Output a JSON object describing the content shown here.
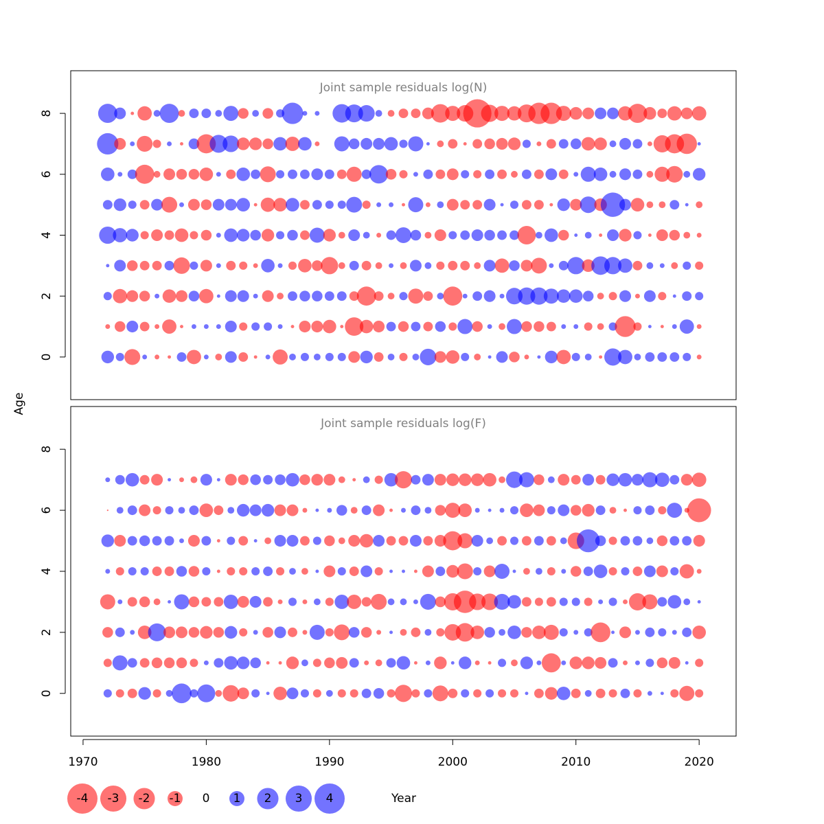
{
  "ylabel": "Age",
  "legend": {
    "values": [
      -4,
      -3,
      -2,
      -1,
      0,
      1,
      2,
      3,
      4
    ]
  },
  "colors": {
    "negative": "#ff0000",
    "positive": "#0000ff"
  },
  "chart_data": [
    {
      "type": "bubble",
      "title": "Joint sample residuals log(N)",
      "x": [
        1972,
        1973,
        1974,
        1975,
        1976,
        1977,
        1978,
        1979,
        1980,
        1981,
        1982,
        1983,
        1984,
        1985,
        1986,
        1987,
        1988,
        1989,
        1990,
        1991,
        1992,
        1993,
        1994,
        1995,
        1996,
        1997,
        1998,
        1999,
        2000,
        2001,
        2002,
        2003,
        2004,
        2005,
        2006,
        2007,
        2008,
        2009,
        2010,
        2011,
        2012,
        2013,
        2014,
        2015,
        2016,
        2017,
        2018,
        2019,
        2020
      ],
      "ages": [
        0,
        1,
        2,
        3,
        4,
        5,
        6,
        7,
        8
      ],
      "xlim": [
        1969,
        2023
      ],
      "ylim": [
        -1.4,
        9.4
      ],
      "yticks": [
        0,
        2,
        4,
        6,
        8
      ],
      "values": [
        [
          0.7,
          0.3,
          -1.1,
          0.1,
          -0.1,
          -0.05,
          0.4,
          -0.9,
          0.1,
          -0.2,
          0.6,
          -0.4,
          -0.05,
          0.1,
          -1.0,
          0.2,
          0.3,
          0.2,
          0.3,
          0.3,
          -0.6,
          0.7,
          -0.4,
          0.2,
          -0.3,
          0.2,
          1.2,
          -0.6,
          -0.8,
          0.3,
          -0.2,
          0.05,
          0.6,
          -0.5,
          -0.1,
          0.05,
          0.7,
          -0.9,
          0.3,
          0.2,
          -0.05,
          1.3,
          0.9,
          0.2,
          0.4,
          0.4,
          0.4,
          0.3,
          -0.1
        ],
        [
          -0.1,
          -0.5,
          0.6,
          -0.4,
          -0.1,
          -0.9,
          -0.05,
          0.1,
          0.1,
          0.1,
          0.6,
          -0.3,
          0.3,
          0.3,
          0.1,
          -0.05,
          -0.6,
          -0.6,
          -0.8,
          -0.05,
          -1.5,
          -0.8,
          -0.6,
          0.4,
          -0.5,
          0.4,
          -0.4,
          0.5,
          -0.3,
          1.0,
          -0.5,
          0.1,
          -0.2,
          1.0,
          -0.5,
          -0.5,
          -0.4,
          0.1,
          0.1,
          -0.3,
          -0.2,
          0.3,
          -1.9,
          -0.3,
          0.05,
          -0.05,
          0.1,
          0.9,
          -0.1
        ],
        [
          0.3,
          -0.9,
          -0.6,
          -0.5,
          0.1,
          -0.8,
          -0.6,
          0.5,
          -0.9,
          0.05,
          0.6,
          0.6,
          0.1,
          -0.6,
          -0.2,
          0.4,
          0.5,
          0.5,
          0.4,
          0.4,
          -0.4,
          -1.6,
          -0.4,
          -0.2,
          0.3,
          -1.0,
          -0.4,
          0.2,
          -1.6,
          0.1,
          0.4,
          0.6,
          0.1,
          1.2,
          1.3,
          1.3,
          1.0,
          0.8,
          0.8,
          0.5,
          -0.2,
          -0.3,
          0.6,
          -0.1,
          0.6,
          -0.3,
          0.05,
          0.4,
          0.3
        ],
        [
          0.05,
          0.6,
          -0.5,
          -0.4,
          -0.4,
          0.4,
          -1.2,
          0.3,
          -0.6,
          0.1,
          -0.4,
          -0.3,
          -0.1,
          0.8,
          0.1,
          -0.3,
          -0.8,
          -0.5,
          -1.3,
          -0.2,
          0.4,
          -0.4,
          -0.2,
          0.1,
          -0.2,
          0.6,
          0.2,
          -0.3,
          -0.4,
          -0.4,
          -0.2,
          0.6,
          -0.9,
          0.5,
          -0.6,
          -1.1,
          0.1,
          0.4,
          1.3,
          -0.7,
          1.5,
          1.3,
          0.9,
          -0.4,
          0.2,
          0.1,
          -0.2,
          0.3,
          -0.3
        ],
        [
          1.3,
          0.9,
          0.7,
          -0.3,
          -0.6,
          -0.4,
          -0.8,
          -0.3,
          -0.5,
          0.1,
          0.8,
          0.7,
          0.5,
          -0.7,
          0.3,
          0.5,
          -0.4,
          1.0,
          -0.7,
          -0.2,
          0.6,
          0.2,
          -0.1,
          0.4,
          1.1,
          0.5,
          -0.2,
          -0.6,
          0.3,
          0.4,
          0.6,
          0.5,
          0.4,
          0.4,
          -1.5,
          0.2,
          0.8,
          -0.5,
          0.05,
          0.2,
          -0.05,
          0.6,
          -0.7,
          0.3,
          -0.05,
          -0.6,
          -0.5,
          -0.2,
          -0.1
        ],
        [
          0.4,
          0.7,
          0.3,
          -0.4,
          0.6,
          -1.1,
          0.1,
          -0.6,
          -0.5,
          0.6,
          0.6,
          0.8,
          -0.05,
          -0.9,
          -0.8,
          0.8,
          -0.4,
          0.4,
          0.3,
          0.3,
          1.1,
          -0.3,
          0.1,
          0.1,
          -0.05,
          1.0,
          -0.1,
          0.2,
          -0.6,
          -0.4,
          -0.4,
          0.6,
          0.05,
          0.3,
          -0.4,
          -0.4,
          -0.05,
          0.7,
          -0.6,
          1.2,
          -0.7,
          2.6,
          0.6,
          -0.8,
          -0.2,
          -0.2,
          0.4,
          0.05,
          -0.2
        ],
        [
          0.8,
          0.1,
          0.4,
          -1.6,
          -0.2,
          -0.6,
          -0.5,
          -0.5,
          -0.8,
          0.1,
          -0.4,
          0.8,
          0.4,
          -1.1,
          0.3,
          0.4,
          0.4,
          0.6,
          0.4,
          -0.4,
          -1.0,
          0.4,
          1.5,
          -0.5,
          -0.3,
          0.1,
          0.4,
          -0.4,
          -0.6,
          0.3,
          -0.3,
          0.4,
          -0.4,
          -0.2,
          0.4,
          -0.4,
          0.6,
          -0.4,
          0.1,
          1.0,
          0.8,
          0.2,
          0.6,
          0.4,
          -0.2,
          -1.0,
          -1.2,
          0.2,
          0.7
        ],
        [
          2.0,
          -0.6,
          0.1,
          -1.1,
          -0.3,
          0.1,
          -0.05,
          0.5,
          -1.6,
          1.4,
          1.2,
          -0.7,
          -0.7,
          -0.5,
          0.8,
          -0.9,
          0.8,
          -0.1,
          0,
          1.0,
          0.5,
          0.6,
          0.6,
          0.8,
          0.3,
          1.0,
          0.05,
          -0.2,
          -0.4,
          -0.05,
          -0.4,
          -0.5,
          -0.6,
          -0.7,
          0.3,
          -0.1,
          -0.4,
          0.4,
          0.5,
          -0.8,
          -0.7,
          0.2,
          0.6,
          0.4,
          -0.1,
          -1.3,
          -1.6,
          -1.8,
          0.05
        ],
        [
          1.6,
          0.6,
          -0.05,
          -0.9,
          0.2,
          1.6,
          -0.2,
          0.4,
          0.4,
          0.2,
          1.0,
          -0.5,
          0.2,
          -0.5,
          0.3,
          2.0,
          0.1,
          0.1,
          0,
          1.5,
          1.4,
          1.2,
          0.2,
          -0.2,
          -0.4,
          -0.4,
          -0.6,
          -1.5,
          -1.0,
          -1.2,
          -3.5,
          -1.3,
          -1.0,
          -0.9,
          -1.4,
          -2.0,
          -2.0,
          -1.0,
          -0.7,
          -0.6,
          0.6,
          0.6,
          -0.9,
          -1.6,
          -0.7,
          -0.4,
          -0.9,
          -0.6,
          -0.9
        ]
      ]
    },
    {
      "type": "bubble",
      "title": "Joint sample residuals log(F)",
      "xlabel": "Year",
      "x": [
        1972,
        1973,
        1974,
        1975,
        1976,
        1977,
        1978,
        1979,
        1980,
        1981,
        1982,
        1983,
        1984,
        1985,
        1986,
        1987,
        1988,
        1989,
        1990,
        1991,
        1992,
        1993,
        1994,
        1995,
        1996,
        1997,
        1998,
        1999,
        2000,
        2001,
        2002,
        2003,
        2004,
        2005,
        2006,
        2007,
        2008,
        2009,
        2010,
        2011,
        2012,
        2013,
        2014,
        2015,
        2016,
        2017,
        2018,
        2019,
        2020
      ],
      "ages": [
        0,
        1,
        2,
        3,
        4,
        5,
        6,
        7
      ],
      "xlim": [
        1969,
        2023
      ],
      "xticks": [
        1970,
        1980,
        1990,
        2000,
        2010,
        2020
      ],
      "ylim": [
        -1.4,
        9.4
      ],
      "yticks": [
        0,
        2,
        4,
        6,
        8
      ],
      "values": [
        [
          0.3,
          -0.3,
          -0.4,
          0.7,
          -0.3,
          0.2,
          1.7,
          0.3,
          1.4,
          -0.2,
          -1.2,
          -0.6,
          0.3,
          0.05,
          -0.8,
          0.6,
          0.3,
          -0.3,
          0.2,
          -0.3,
          -0.3,
          0.4,
          0.5,
          -0.3,
          -1.3,
          -0.3,
          0.3,
          -1.1,
          -0.4,
          0.3,
          -0.3,
          0.3,
          -0.3,
          -0.3,
          0.05,
          -0.4,
          -0.7,
          0.8,
          -0.4,
          0.2,
          -0.4,
          -0.3,
          0.4,
          -0.3,
          0.1,
          0.05,
          -0.3,
          -1.0,
          -0.3
        ],
        [
          -0.3,
          1.0,
          0.4,
          -0.4,
          -0.5,
          -0.5,
          -0.5,
          -0.3,
          0.1,
          0.4,
          0.8,
          0.7,
          0.5,
          -0.05,
          -0.05,
          -0.7,
          0.2,
          -0.3,
          -0.5,
          -0.6,
          0.4,
          -0.1,
          -0.2,
          0.4,
          0.8,
          -0.05,
          0.1,
          -0.7,
          0.05,
          0.7,
          -0.1,
          -0.05,
          0.3,
          -0.2,
          0.7,
          0.1,
          -1.6,
          0.1,
          -0.7,
          -0.7,
          -0.6,
          0.4,
          -0.1,
          0.1,
          0.3,
          -0.5,
          -0.6,
          0.05,
          -0.3
        ],
        [
          -0.5,
          0.4,
          0.1,
          -0.8,
          1.4,
          -0.6,
          -0.6,
          -0.5,
          -0.7,
          -0.5,
          0.7,
          -0.3,
          0.1,
          -0.5,
          0.6,
          -0.4,
          -0.1,
          1.0,
          -0.3,
          -1.1,
          0.5,
          -0.5,
          -0.1,
          0.05,
          -0.2,
          -0.4,
          0.2,
          -0.3,
          -1.2,
          -1.5,
          -0.8,
          0.5,
          0.2,
          0.8,
          -0.5,
          -0.8,
          -1.0,
          0.3,
          0.1,
          0.3,
          -1.7,
          0.05,
          -0.6,
          0.1,
          0.4,
          0.3,
          0.1,
          0.4,
          -0.8
        ],
        [
          -1.0,
          0.1,
          -0.4,
          -0.5,
          -0.2,
          0.05,
          1.0,
          -0.5,
          -0.4,
          -0.4,
          0.9,
          -0.6,
          0.6,
          -0.4,
          -0.1,
          0.3,
          -0.1,
          0.2,
          -0.3,
          0.9,
          -0.9,
          -0.4,
          -1.1,
          0.2,
          0.2,
          0.1,
          1.1,
          -0.5,
          -1.3,
          -2.2,
          -1.2,
          -1.2,
          1.1,
          0.8,
          -0.4,
          -0.3,
          -0.4,
          0.3,
          0.3,
          -0.3,
          0.1,
          0.3,
          -0.1,
          -1.3,
          -1.0,
          0.4,
          0.8,
          0.2,
          0.05
        ],
        [
          0.1,
          -0.3,
          0.3,
          0.3,
          -0.4,
          -0.4,
          0.5,
          -0.5,
          0.3,
          -0.05,
          -0.3,
          -0.3,
          0.3,
          0.4,
          -0.3,
          0.2,
          -0.2,
          0.05,
          -0.6,
          0.3,
          -0.4,
          0.6,
          -0.3,
          0.05,
          0.05,
          -0.05,
          -0.6,
          0.4,
          -0.7,
          -1.1,
          0.3,
          -0.6,
          1.0,
          0.05,
          -0.2,
          0.2,
          -0.3,
          0.1,
          -0.5,
          0.4,
          0.8,
          -0.3,
          0.3,
          -0.4,
          0.6,
          -0.6,
          0.3,
          -0.9,
          -0.1
        ],
        [
          0.7,
          -0.6,
          0.4,
          0.5,
          0.4,
          0.4,
          0.1,
          -0.6,
          0.4,
          -0.05,
          0.3,
          -0.4,
          0.05,
          -0.2,
          0.6,
          0.6,
          -0.4,
          0.3,
          -0.5,
          -0.2,
          -0.6,
          -0.8,
          0.6,
          -0.4,
          -0.4,
          0.6,
          -0.4,
          -0.6,
          -1.6,
          -1.0,
          0.6,
          0.2,
          -0.4,
          0.3,
          -0.4,
          0.4,
          -0.4,
          0.2,
          -1.2,
          2.3,
          0.5,
          -0.3,
          0.4,
          0.4,
          0.2,
          -0.5,
          0.4,
          0.4,
          -0.6
        ],
        [
          -0.01,
          0.2,
          0.4,
          -0.6,
          -0.3,
          0.3,
          0.2,
          0.4,
          -0.8,
          -0.4,
          0.2,
          0.7,
          0.6,
          0.7,
          -0.6,
          -0.6,
          -0.1,
          0.05,
          0.1,
          0.5,
          -0.2,
          0.4,
          -0.6,
          -0.05,
          0.1,
          0.4,
          0.2,
          -0.5,
          -1.0,
          -0.8,
          0.1,
          0.05,
          0.1,
          0.3,
          -0.8,
          -0.6,
          0.3,
          0.6,
          -0.5,
          -0.7,
          0.4,
          -0.2,
          -0.05,
          0.3,
          0.4,
          -0.3,
          1.0,
          -0.1,
          -2.5
        ],
        [
          0.1,
          0.4,
          0.8,
          -0.4,
          -0.6,
          0.05,
          -0.1,
          -0.2,
          0.6,
          0.05,
          -0.6,
          -0.5,
          0.5,
          0.4,
          0.5,
          0.8,
          -0.5,
          -0.6,
          -0.6,
          -0.2,
          -0.05,
          0.2,
          -0.3,
          0.8,
          -1.3,
          0.4,
          0.6,
          -0.6,
          -0.7,
          -0.7,
          -0.7,
          -0.8,
          -0.2,
          1.2,
          1.0,
          -0.5,
          0.2,
          -0.6,
          -0.4,
          0.6,
          -0.4,
          0.7,
          0.8,
          0.6,
          1.0,
          0.9,
          0.4,
          -0.6,
          -0.9
        ]
      ]
    }
  ]
}
